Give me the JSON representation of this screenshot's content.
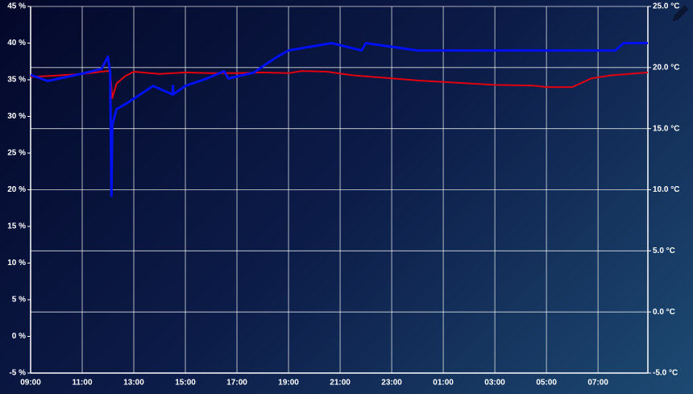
{
  "chart_data": {
    "type": "line",
    "x": [
      "09:00",
      "09:40",
      "11:00",
      "11:45",
      "12:00",
      "12:05",
      "12:08",
      "12:10",
      "12:20",
      "12:40",
      "13:00",
      "14:00",
      "15:00",
      "16:00",
      "17:00",
      "18:00",
      "19:00",
      "19:30",
      "20:30",
      "21:30",
      "23:00",
      "00:00",
      "01:30",
      "03:00",
      "04:30",
      "05:00",
      "06:00",
      "06:45",
      "07:30",
      "08:56"
    ],
    "xlim": [
      "09:00",
      "08:56"
    ],
    "xticks": [
      "09:00",
      "11:00",
      "13:00",
      "15:00",
      "17:00",
      "19:00",
      "21:00",
      "23:00",
      "01:00",
      "03:00",
      "05:00",
      "07:00"
    ],
    "ylim": [
      -5,
      45
    ],
    "yticks": [
      {
        "value": -5,
        "label": "-5 %"
      },
      {
        "value": 0,
        "label": "0 %"
      },
      {
        "value": 5,
        "label": "5 %"
      },
      {
        "value": 10,
        "label": "10 %"
      },
      {
        "value": 15,
        "label": "15 %"
      },
      {
        "value": 20,
        "label": "20 %"
      },
      {
        "value": 25,
        "label": "25 %"
      },
      {
        "value": 30,
        "label": "30 %"
      },
      {
        "value": 35,
        "label": "35 %"
      },
      {
        "value": 40,
        "label": "40 %"
      },
      {
        "value": 45,
        "label": "45 %"
      }
    ],
    "y2lim": [
      -5,
      25
    ],
    "y2ticks": [
      {
        "value": -5,
        "label": "-5.0 °C"
      },
      {
        "value": 0,
        "label": "0.0 °C"
      },
      {
        "value": 5,
        "label": "5.0 °C"
      },
      {
        "value": 10,
        "label": "10.0 °C"
      },
      {
        "value": 15,
        "label": "15.0 °C"
      },
      {
        "value": 20,
        "label": "20.0 °C"
      },
      {
        "value": 25,
        "label": "25.0 °C"
      }
    ],
    "grid": true,
    "series": [
      {
        "color": "#e00010",
        "x": [
          "09:00",
          "09:40",
          "11:00",
          "12:00",
          "12:05",
          "12:10",
          "12:20",
          "12:40",
          "13:00",
          "14:00",
          "15:00",
          "16:00",
          "17:00",
          "18:00",
          "19:00",
          "19:30",
          "20:30",
          "21:30",
          "23:00",
          "00:00",
          "01:30",
          "03:00",
          "04:30",
          "05:00",
          "06:00",
          "06:45",
          "07:30",
          "08:56"
        ],
        "values": [
          35.4,
          35.5,
          35.8,
          36.2,
          36.1,
          32.5,
          34.5,
          35.5,
          36.1,
          35.8,
          36.0,
          35.9,
          35.9,
          36.0,
          35.9,
          36.2,
          36.1,
          35.6,
          35.2,
          34.9,
          34.6,
          34.3,
          34.2,
          34.0,
          34.0,
          35.2,
          35.6,
          36.0
        ]
      },
      {
        "color": "#0010f0",
        "axis": "y2",
        "x": [
          "09:00",
          "09:40",
          "11:00",
          "11:45",
          "12:00",
          "12:05",
          "12:08",
          "12:10",
          "12:20",
          "12:45",
          "13:45",
          "14:30",
          "14:31",
          "14:32",
          "15:00",
          "15:50",
          "16:30",
          "16:40",
          "17:40",
          "18:00",
          "18:30",
          "19:00",
          "20:40",
          "21:50",
          "22:00",
          "00:00",
          "07:40",
          "08:00",
          "08:56"
        ],
        "values": [
          19.4,
          18.9,
          19.5,
          19.9,
          20.9,
          19.6,
          9.5,
          15.3,
          16.6,
          17.1,
          18.5,
          17.8,
          18.5,
          17.8,
          18.5,
          19.1,
          19.7,
          19.1,
          19.6,
          20.1,
          20.8,
          21.4,
          22.0,
          21.4,
          22.0,
          21.4,
          21.4,
          22.0,
          22.0
        ]
      }
    ]
  }
}
